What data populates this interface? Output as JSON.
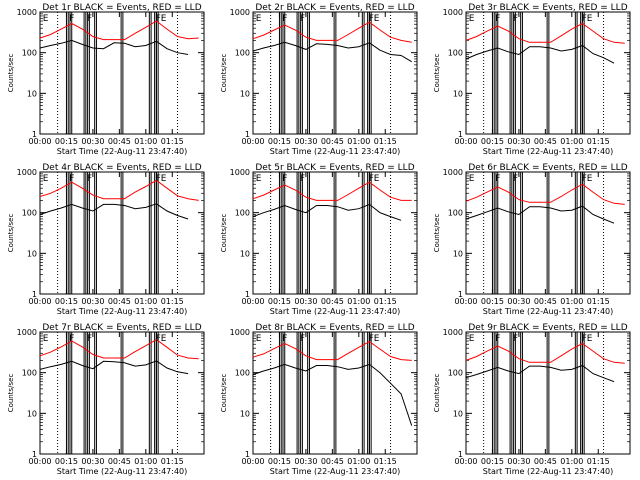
{
  "colors": {
    "events": "#000000",
    "lld": "#ff0000",
    "axes": "#000000",
    "background": "#ffffff"
  },
  "common": {
    "xlabel": "Start Time (22-Aug-11 23:47:40)",
    "ylabel": "Counts/sec",
    "xticks": [
      "00:00",
      "00:15",
      "00:30",
      "00:45",
      "01:00",
      "01:15"
    ],
    "yticks": [
      "1",
      "10",
      "100",
      "1000"
    ]
  },
  "chart_data": [
    {
      "type": "line",
      "title": "Det 1r BLACK = Events, RED = LLD",
      "xlabel": "Start Time (22-Aug-11 23:47:40)",
      "ylabel": "Counts/sec",
      "yscale": "log",
      "xlim_min": [
        0,
        93
      ],
      "ylim": [
        1,
        1000
      ],
      "x_min": [
        0,
        6,
        12,
        18,
        24,
        30,
        36,
        42,
        48,
        54,
        60,
        66,
        72,
        78,
        84,
        90
      ],
      "series": [
        {
          "name": "LLD",
          "color": "#ff0000",
          "values": [
            230,
            280,
            380,
            520,
            380,
            250,
            210,
            210,
            210,
            300,
            420,
            600,
            380,
            250,
            220,
            230
          ]
        },
        {
          "name": "Events",
          "color": "#000000",
          "values": [
            130,
            150,
            170,
            200,
            160,
            130,
            125,
            175,
            170,
            140,
            150,
            190,
            125,
            100,
            90,
            null
          ]
        }
      ],
      "gaps_min": [
        [
          15,
          16
        ],
        [
          17,
          18
        ],
        [
          25,
          26
        ],
        [
          27,
          28
        ],
        [
          31,
          32
        ],
        [
          46,
          47
        ],
        [
          62,
          63
        ],
        [
          65,
          66
        ],
        [
          66,
          67
        ]
      ],
      "dotted_vlines_min": [
        10,
        78
      ],
      "markers": [
        {
          "label": "E",
          "x_min": 1
        },
        {
          "label": "F",
          "x_min": 16
        },
        {
          "label": "F",
          "x_min": 26
        },
        {
          "label": "FE",
          "x_min": 65
        }
      ]
    },
    {
      "type": "line",
      "title": "Det 2r BLACK = Events, RED = LLD",
      "xlabel": "Start Time (22-Aug-11 23:47:40)",
      "ylabel": "Counts/sec",
      "yscale": "log",
      "xlim_min": [
        0,
        93
      ],
      "ylim": [
        1,
        1000
      ],
      "x_min": [
        0,
        6,
        12,
        18,
        24,
        30,
        36,
        42,
        48,
        54,
        60,
        66,
        72,
        78,
        84,
        90
      ],
      "series": [
        {
          "name": "LLD",
          "color": "#ff0000",
          "values": [
            220,
            270,
            360,
            480,
            360,
            240,
            200,
            200,
            200,
            280,
            400,
            560,
            360,
            240,
            200,
            180
          ]
        },
        {
          "name": "Events",
          "color": "#000000",
          "values": [
            110,
            130,
            150,
            180,
            150,
            120,
            165,
            160,
            150,
            130,
            140,
            175,
            115,
            90,
            85,
            60
          ]
        }
      ],
      "gaps_min": [
        [
          15,
          16
        ],
        [
          17,
          18
        ],
        [
          25,
          26
        ],
        [
          27,
          28
        ],
        [
          31,
          32
        ],
        [
          46,
          47
        ],
        [
          62,
          63
        ],
        [
          65,
          66
        ],
        [
          66,
          67
        ]
      ],
      "dotted_vlines_min": [
        10,
        78
      ],
      "markers": [
        {
          "label": "E",
          "x_min": 1
        },
        {
          "label": "F",
          "x_min": 16
        },
        {
          "label": "F",
          "x_min": 26
        },
        {
          "label": "FE",
          "x_min": 65
        }
      ]
    },
    {
      "type": "line",
      "title": "Det 3r BLACK = Events, RED = LLD",
      "xlabel": "Start Time (22-Aug-11 23:47:40)",
      "ylabel": "Counts/sec",
      "yscale": "log",
      "xlim_min": [
        0,
        93
      ],
      "ylim": [
        1,
        1000
      ],
      "x_min": [
        0,
        6,
        12,
        18,
        24,
        30,
        36,
        42,
        48,
        54,
        60,
        66,
        72,
        78,
        84,
        90
      ],
      "series": [
        {
          "name": "LLD",
          "color": "#ff0000",
          "values": [
            200,
            250,
            340,
            450,
            340,
            220,
            180,
            180,
            180,
            260,
            380,
            520,
            340,
            220,
            180,
            170
          ]
        },
        {
          "name": "Events",
          "color": "#000000",
          "values": [
            70,
            90,
            110,
            130,
            105,
            90,
            140,
            140,
            130,
            110,
            120,
            150,
            95,
            75,
            55,
            null
          ]
        }
      ],
      "gaps_min": [
        [
          15,
          16
        ],
        [
          17,
          18
        ],
        [
          25,
          26
        ],
        [
          27,
          28
        ],
        [
          31,
          32
        ],
        [
          46,
          47
        ],
        [
          62,
          63
        ],
        [
          65,
          66
        ],
        [
          66,
          67
        ]
      ],
      "dotted_vlines_min": [
        10,
        78
      ],
      "markers": [
        {
          "label": "E",
          "x_min": 1
        },
        {
          "label": "F",
          "x_min": 16
        },
        {
          "label": "F",
          "x_min": 26
        },
        {
          "label": "FE",
          "x_min": 65
        }
      ]
    },
    {
      "type": "line",
      "title": "Det 4r BLACK = Events, RED = LLD",
      "xlabel": "Start Time (22-Aug-11 23:47:40)",
      "ylabel": "Counts/sec",
      "yscale": "log",
      "xlim_min": [
        0,
        93
      ],
      "ylim": [
        1,
        1000
      ],
      "x_min": [
        0,
        6,
        12,
        18,
        24,
        30,
        36,
        42,
        48,
        54,
        60,
        66,
        72,
        78,
        84,
        90
      ],
      "series": [
        {
          "name": "LLD",
          "color": "#ff0000",
          "values": [
            250,
            300,
            400,
            560,
            400,
            270,
            220,
            220,
            220,
            320,
            440,
            620,
            400,
            260,
            220,
            200
          ]
        },
        {
          "name": "Events",
          "color": "#000000",
          "values": [
            90,
            110,
            130,
            160,
            130,
            110,
            160,
            160,
            150,
            125,
            135,
            165,
            110,
            85,
            70,
            null
          ]
        }
      ],
      "gaps_min": [
        [
          15,
          16
        ],
        [
          17,
          18
        ],
        [
          25,
          26
        ],
        [
          27,
          28
        ],
        [
          31,
          32
        ],
        [
          46,
          47
        ],
        [
          62,
          63
        ],
        [
          65,
          66
        ],
        [
          66,
          67
        ]
      ],
      "dotted_vlines_min": [
        10,
        78
      ],
      "markers": [
        {
          "label": "E",
          "x_min": 1
        },
        {
          "label": "F",
          "x_min": 16
        },
        {
          "label": "F",
          "x_min": 26
        },
        {
          "label": "FE",
          "x_min": 65
        }
      ]
    },
    {
      "type": "line",
      "title": "Det 5r BLACK = Events, RED = LLD",
      "xlabel": "Start Time (22-Aug-11 23:47:40)",
      "ylabel": "Counts/sec",
      "yscale": "log",
      "xlim_min": [
        0,
        93
      ],
      "ylim": [
        1,
        1000
      ],
      "x_min": [
        0,
        6,
        12,
        18,
        24,
        30,
        36,
        42,
        48,
        54,
        60,
        66,
        72,
        78,
        84,
        90
      ],
      "series": [
        {
          "name": "LLD",
          "color": "#ff0000",
          "values": [
            220,
            270,
            360,
            480,
            360,
            240,
            200,
            200,
            200,
            280,
            400,
            560,
            360,
            240,
            200,
            200
          ]
        },
        {
          "name": "Events",
          "color": "#000000",
          "values": [
            80,
            100,
            120,
            150,
            120,
            100,
            150,
            150,
            140,
            115,
            125,
            160,
            100,
            80,
            65,
            null
          ]
        }
      ],
      "gaps_min": [
        [
          15,
          16
        ],
        [
          17,
          18
        ],
        [
          25,
          26
        ],
        [
          27,
          28
        ],
        [
          31,
          32
        ],
        [
          46,
          47
        ],
        [
          62,
          63
        ],
        [
          65,
          66
        ],
        [
          66,
          67
        ]
      ],
      "dotted_vlines_min": [
        10,
        78
      ],
      "markers": [
        {
          "label": "E",
          "x_min": 1
        },
        {
          "label": "F",
          "x_min": 16
        },
        {
          "label": "F",
          "x_min": 26
        },
        {
          "label": "FE",
          "x_min": 65
        }
      ]
    },
    {
      "type": "line",
      "title": "Det 6r BLACK = Events, RED = LLD",
      "xlabel": "Start Time (22-Aug-11 23:47:40)",
      "ylabel": "Counts/sec",
      "yscale": "log",
      "xlim_min": [
        0,
        93
      ],
      "ylim": [
        1,
        1000
      ],
      "x_min": [
        0,
        6,
        12,
        18,
        24,
        30,
        36,
        42,
        48,
        54,
        60,
        66,
        72,
        78,
        84,
        90
      ],
      "series": [
        {
          "name": "LLD",
          "color": "#ff0000",
          "values": [
            190,
            240,
            320,
            430,
            320,
            210,
            180,
            180,
            180,
            250,
            360,
            500,
            320,
            210,
            170,
            160
          ]
        },
        {
          "name": "Events",
          "color": "#000000",
          "values": [
            70,
            85,
            105,
            130,
            105,
            90,
            140,
            140,
            130,
            110,
            115,
            145,
            90,
            70,
            55,
            null
          ]
        }
      ],
      "gaps_min": [
        [
          15,
          16
        ],
        [
          17,
          18
        ],
        [
          25,
          26
        ],
        [
          27,
          28
        ],
        [
          31,
          32
        ],
        [
          46,
          47
        ],
        [
          62,
          63
        ],
        [
          65,
          66
        ],
        [
          66,
          67
        ]
      ],
      "dotted_vlines_min": [
        10,
        78
      ],
      "markers": [
        {
          "label": "E",
          "x_min": 1
        },
        {
          "label": "F",
          "x_min": 16
        },
        {
          "label": "F",
          "x_min": 26
        },
        {
          "label": "FE",
          "x_min": 65
        }
      ]
    },
    {
      "type": "line",
      "title": "Det 7r BLACK = Events, RED = LLD",
      "xlabel": "Start Time (22-Aug-11 23:47:40)",
      "ylabel": "Counts/sec",
      "yscale": "log",
      "xlim_min": [
        0,
        93
      ],
      "ylim": [
        1,
        1000
      ],
      "x_min": [
        0,
        6,
        12,
        18,
        24,
        30,
        36,
        42,
        48,
        54,
        60,
        66,
        72,
        78,
        84,
        90
      ],
      "series": [
        {
          "name": "LLD",
          "color": "#ff0000",
          "values": [
            260,
            320,
            430,
            600,
            430,
            280,
            230,
            230,
            230,
            330,
            460,
            650,
            420,
            270,
            230,
            220
          ]
        },
        {
          "name": "Events",
          "color": "#000000",
          "values": [
            120,
            140,
            160,
            190,
            150,
            125,
            190,
            185,
            175,
            145,
            155,
            195,
            130,
            105,
            95,
            null
          ]
        }
      ],
      "gaps_min": [
        [
          15,
          16
        ],
        [
          17,
          18
        ],
        [
          25,
          26
        ],
        [
          27,
          28
        ],
        [
          31,
          32
        ],
        [
          46,
          47
        ],
        [
          62,
          63
        ],
        [
          65,
          66
        ],
        [
          66,
          67
        ]
      ],
      "dotted_vlines_min": [
        10,
        78
      ],
      "markers": [
        {
          "label": "E",
          "x_min": 1
        },
        {
          "label": "F",
          "x_min": 16
        },
        {
          "label": "F",
          "x_min": 26
        },
        {
          "label": "FE",
          "x_min": 65
        }
      ]
    },
    {
      "type": "line",
      "title": "Det 8r BLACK = Events, RED = LLD",
      "xlabel": "Start Time (22-Aug-11 23:47:40)",
      "ylabel": "Counts/sec",
      "yscale": "log",
      "xlim_min": [
        0,
        93
      ],
      "ylim": [
        1,
        1000
      ],
      "x_min": [
        0,
        6,
        12,
        18,
        24,
        30,
        36,
        42,
        48,
        54,
        60,
        66,
        72,
        78,
        84,
        90
      ],
      "series": [
        {
          "name": "LLD",
          "color": "#ff0000",
          "values": [
            240,
            290,
            390,
            520,
            390,
            260,
            210,
            210,
            210,
            300,
            420,
            580,
            380,
            250,
            210,
            200
          ]
        },
        {
          "name": "Events",
          "color": "#000000",
          "values": [
            90,
            110,
            130,
            160,
            130,
            110,
            150,
            150,
            140,
            120,
            130,
            160,
            100,
            55,
            30,
            5
          ]
        }
      ],
      "gaps_min": [
        [
          15,
          16
        ],
        [
          17,
          18
        ],
        [
          25,
          26
        ],
        [
          27,
          28
        ],
        [
          31,
          32
        ],
        [
          46,
          47
        ],
        [
          62,
          63
        ],
        [
          65,
          66
        ],
        [
          66,
          67
        ]
      ],
      "dotted_vlines_min": [
        10,
        78
      ],
      "markers": [
        {
          "label": "E",
          "x_min": 1
        },
        {
          "label": "F",
          "x_min": 16
        },
        {
          "label": "F",
          "x_min": 26
        },
        {
          "label": "FE",
          "x_min": 65
        }
      ]
    },
    {
      "type": "line",
      "title": "Det 9r BLACK = Events, RED = LLD",
      "xlabel": "Start Time (22-Aug-11 23:47:40)",
      "ylabel": "Counts/sec",
      "yscale": "log",
      "xlim_min": [
        0,
        93
      ],
      "ylim": [
        1,
        1000
      ],
      "x_min": [
        0,
        6,
        12,
        18,
        24,
        30,
        36,
        42,
        48,
        54,
        60,
        66,
        72,
        78,
        84,
        90
      ],
      "series": [
        {
          "name": "LLD",
          "color": "#ff0000",
          "values": [
            200,
            250,
            340,
            450,
            340,
            220,
            180,
            180,
            180,
            260,
            380,
            520,
            340,
            220,
            180,
            170
          ]
        },
        {
          "name": "Events",
          "color": "#000000",
          "values": [
            75,
            90,
            110,
            135,
            110,
            95,
            145,
            145,
            135,
            115,
            120,
            150,
            95,
            75,
            60,
            null
          ]
        }
      ],
      "gaps_min": [
        [
          15,
          16
        ],
        [
          17,
          18
        ],
        [
          25,
          26
        ],
        [
          27,
          28
        ],
        [
          31,
          32
        ],
        [
          46,
          47
        ],
        [
          62,
          63
        ],
        [
          65,
          66
        ],
        [
          66,
          67
        ]
      ],
      "dotted_vlines_min": [
        10,
        78
      ],
      "markers": [
        {
          "label": "E",
          "x_min": 1
        },
        {
          "label": "F",
          "x_min": 16
        },
        {
          "label": "F",
          "x_min": 26
        },
        {
          "label": "FE",
          "x_min": 65
        }
      ]
    }
  ]
}
